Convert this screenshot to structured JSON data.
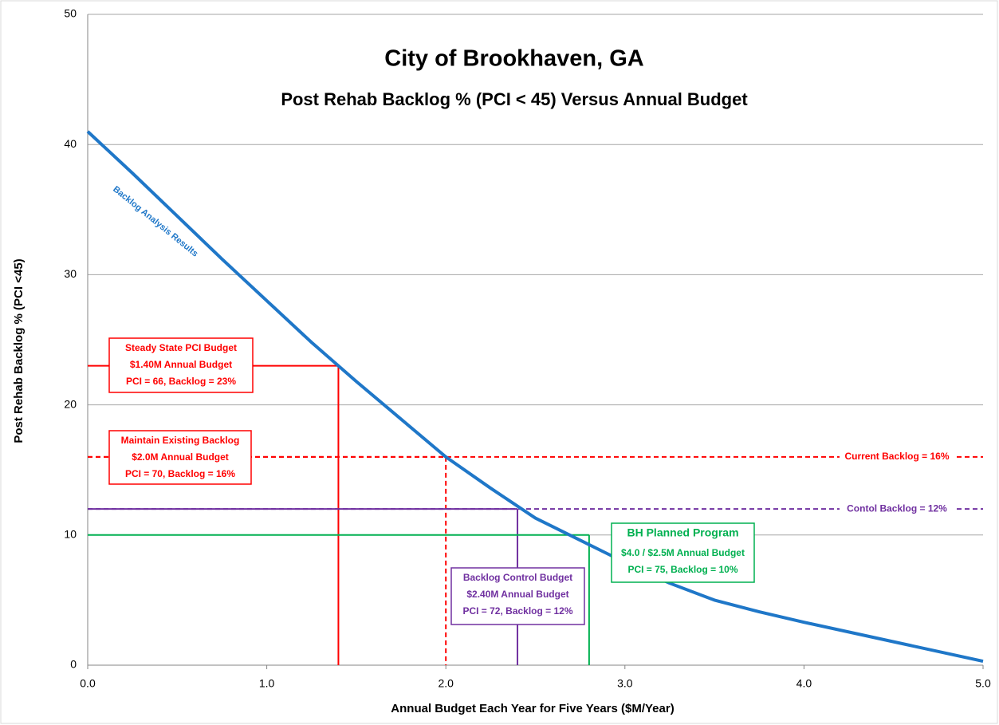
{
  "chart_data": {
    "type": "line",
    "title": "City of Brookhaven, GA",
    "subtitle": "Post Rehab Backlog % (PCI < 45) Versus Annual Budget",
    "x_label": "Annual Budget Each Year for Five Years ($M/Year)",
    "y_label": "Post Rehab Backlog % (PCI <45)",
    "xlim": [
      0,
      5
    ],
    "xticks": [
      {
        "value": 0,
        "label": "0.0"
      },
      {
        "value": 1,
        "label": "1.0"
      },
      {
        "value": 2,
        "label": "2.0"
      },
      {
        "value": 3,
        "label": "3.0"
      },
      {
        "value": 4,
        "label": "4.0"
      },
      {
        "value": 5,
        "label": "5.0"
      }
    ],
    "ylim": [
      0,
      50
    ],
    "yticks": [
      0,
      10,
      20,
      30,
      40,
      50
    ],
    "grid": true,
    "series": [
      {
        "name": "Backlog Analysis Results",
        "color": "#1f77c8",
        "x": [
          0,
          0.25,
          0.5,
          0.75,
          1.0,
          1.25,
          1.5,
          1.75,
          2.0,
          2.25,
          2.5,
          2.75,
          3.0,
          3.25,
          3.5,
          3.75,
          4.0,
          4.5,
          5.0
        ],
        "values": [
          41,
          37.8,
          34.5,
          31.2,
          28.0,
          24.8,
          21.8,
          18.9,
          16.0,
          13.6,
          11.3,
          9.6,
          7.9,
          6.3,
          5.0,
          4.1,
          3.3,
          1.8,
          0.3
        ]
      }
    ],
    "reference_lines": [
      {
        "y": 16,
        "color": "#ff0000",
        "label": "Current Backlog = 16%"
      },
      {
        "y": 12,
        "color": "#7030a0",
        "label": "Contol Backlog = 12%"
      }
    ],
    "budgets": [
      {
        "x": 1.4,
        "y": 23,
        "color": "#ff0000",
        "dashed": false,
        "lines": [
          "Steady State PCI Budget",
          "$1.40M Annual Budget",
          "PCI = 66, Backlog = 23%"
        ]
      },
      {
        "x": 2.0,
        "y": 16,
        "color": "#ff0000",
        "dashed": true,
        "lines": [
          "Maintain Existing Backlog",
          "$2.0M Annual Budget",
          "PCI = 70, Backlog = 16%"
        ]
      },
      {
        "x": 2.4,
        "y": 12,
        "color": "#7030a0",
        "dashed": false,
        "lines": [
          "Backlog  Control Budget",
          "$2.40M Annual Budget",
          "PCI = 72, Backlog = 12%"
        ]
      },
      {
        "x": 2.8,
        "y": 10,
        "color": "#00b050",
        "dashed": false,
        "lines": [
          "BH Planned Program",
          "$4.0 / $2.5M Annual Budget",
          "PCI = 75, Backlog = 10%"
        ]
      }
    ]
  }
}
